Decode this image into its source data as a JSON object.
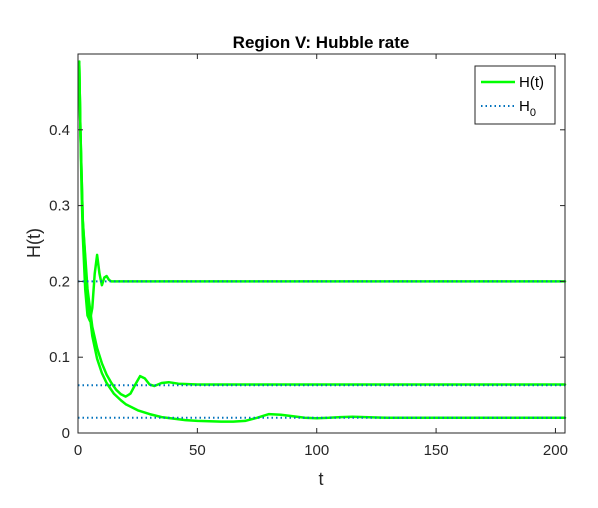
{
  "chart_data": {
    "type": "line",
    "title": "Region V: Hubble rate",
    "xlabel": "t",
    "ylabel": "H(t)",
    "xlim": [
      0,
      204
    ],
    "ylim": [
      0,
      0.5
    ],
    "xticks": [
      0,
      50,
      100,
      150,
      200
    ],
    "yticks": [
      0,
      0.1,
      0.2,
      0.3,
      0.4
    ],
    "xtick_labels": [
      "0",
      "50",
      "100",
      "150",
      "200"
    ],
    "ytick_labels": [
      "0",
      "0.1",
      "0.2",
      "0.3",
      "0.4"
    ],
    "grid": false,
    "legend_position": "top-right",
    "legend": [
      {
        "label": "H(t)",
        "style": "solid",
        "color": "#00ff00"
      },
      {
        "label": "H",
        "subscript": "0",
        "style": "dotted",
        "color": "#0072bd"
      }
    ],
    "series": [
      {
        "name": "H(t)",
        "color": "#00ff00",
        "style": "solid",
        "x": [
          0.5,
          1,
          1.5,
          2,
          3,
          4,
          5,
          6,
          7,
          8,
          9,
          10,
          11,
          12,
          13,
          14,
          16,
          20,
          30,
          50,
          100,
          150,
          204
        ],
        "y": [
          0.49,
          0.4,
          0.32,
          0.26,
          0.19,
          0.155,
          0.148,
          0.165,
          0.21,
          0.235,
          0.21,
          0.195,
          0.205,
          0.207,
          0.202,
          0.2,
          0.2,
          0.2,
          0.2,
          0.2,
          0.2,
          0.2,
          0.2
        ]
      },
      {
        "name": "H(t)",
        "color": "#00ff00",
        "style": "solid",
        "x": [
          0.5,
          1,
          2,
          4,
          6,
          8,
          10,
          12,
          14,
          16,
          18,
          20,
          22,
          24,
          26,
          28,
          30,
          32,
          35,
          38,
          42,
          50,
          70,
          100,
          150,
          204
        ],
        "y": [
          0.49,
          0.4,
          0.28,
          0.19,
          0.14,
          0.112,
          0.092,
          0.077,
          0.066,
          0.057,
          0.051,
          0.048,
          0.052,
          0.064,
          0.075,
          0.072,
          0.064,
          0.062,
          0.066,
          0.067,
          0.065,
          0.064,
          0.064,
          0.064,
          0.064,
          0.064
        ]
      },
      {
        "name": "H(t)",
        "color": "#00ff00",
        "style": "solid",
        "x": [
          0.5,
          1,
          2,
          4,
          6,
          8,
          10,
          12,
          15,
          18,
          20,
          25,
          30,
          35,
          40,
          45,
          50,
          55,
          60,
          65,
          70,
          75,
          80,
          85,
          90,
          95,
          100,
          105,
          110,
          115,
          120,
          130,
          150,
          204
        ],
        "y": [
          0.49,
          0.4,
          0.28,
          0.18,
          0.128,
          0.098,
          0.079,
          0.066,
          0.052,
          0.043,
          0.038,
          0.03,
          0.025,
          0.021,
          0.019,
          0.017,
          0.016,
          0.0155,
          0.015,
          0.015,
          0.016,
          0.02,
          0.025,
          0.024,
          0.022,
          0.02,
          0.0195,
          0.02,
          0.021,
          0.0215,
          0.021,
          0.02,
          0.02,
          0.02
        ]
      },
      {
        "name": "H0",
        "color": "#0072bd",
        "style": "dotted",
        "x": [
          0,
          204
        ],
        "y": [
          0.2,
          0.2
        ]
      },
      {
        "name": "H0",
        "color": "#0072bd",
        "style": "dotted",
        "x": [
          0,
          204
        ],
        "y": [
          0.063,
          0.063
        ]
      },
      {
        "name": "H0",
        "color": "#0072bd",
        "style": "dotted",
        "x": [
          0,
          204
        ],
        "y": [
          0.02,
          0.02
        ]
      }
    ]
  }
}
